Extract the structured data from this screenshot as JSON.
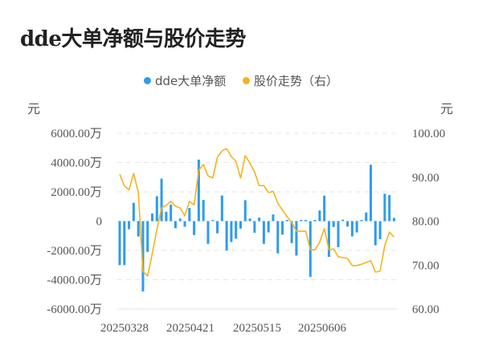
{
  "title": "dde大单净额与股价走势",
  "legend": [
    {
      "label": "dde大单净额",
      "color": "#2e9bf0",
      "icon": "circle"
    },
    {
      "label": "股价走势（右）",
      "color": "#f5b31c",
      "icon": "circle"
    }
  ],
  "axes": {
    "left_unit": "元",
    "right_unit": "元",
    "left_ticks": [
      "6000.00万",
      "4000.00万",
      "2000.00万",
      "0",
      "-2000.00万",
      "-4000.00万",
      "-6000.00万"
    ],
    "right_ticks": [
      "100.00",
      "90.00",
      "80.00",
      "70.00",
      "60.00"
    ],
    "x_ticks": [
      "20250328",
      "20250421",
      "20250515",
      "20250606"
    ]
  },
  "chart_data": {
    "type": "bar+line",
    "title": "dde大单净额与股价走势",
    "xlabel": "",
    "ylabel_left": "元",
    "ylabel_right": "元",
    "ylim_left": [
      -6000,
      6000
    ],
    "ylim_left_unit": "万元",
    "ylim_right": [
      60,
      100
    ],
    "grid": true,
    "legend_position": "top",
    "x_tick_labels": [
      "20250328",
      "20250421",
      "20250515",
      "20250606"
    ],
    "series": [
      {
        "name": "dde大单净额",
        "type": "bar",
        "axis": "left",
        "color": "#2e9bf0",
        "values": [
          -3000,
          -3000,
          -550,
          1250,
          -1050,
          -4800,
          -2100,
          520,
          1700,
          2900,
          640,
          1130,
          -480,
          180,
          -380,
          900,
          -950,
          4200,
          1450,
          -1550,
          30,
          -830,
          1750,
          -2000,
          -1430,
          -1200,
          -510,
          1430,
          180,
          -790,
          240,
          -1550,
          -770,
          460,
          -2200,
          -920,
          80,
          -1500,
          -2350,
          50,
          40,
          -3800,
          0,
          730,
          1740,
          -2440,
          -400,
          -1780,
          100,
          -370,
          -1040,
          -770,
          0,
          590,
          3850,
          -1650,
          -1230,
          1870,
          1780,
          220
        ]
      },
      {
        "name": "股价走势（右）",
        "type": "line",
        "axis": "right",
        "color": "#f5b31c",
        "values": [
          90.7,
          88.0,
          87.1,
          90.9,
          86.5,
          68.6,
          67.5,
          72.6,
          78.1,
          83.0,
          83.6,
          84.5,
          83.4,
          83.0,
          81.2,
          84.5,
          83.7,
          91.6,
          92.9,
          90.3,
          89.8,
          94.5,
          96.0,
          96.5,
          94.7,
          93.6,
          89.8,
          94.9,
          93.2,
          91.2,
          88.1,
          88.1,
          86.5,
          86.8,
          84.1,
          82.5,
          81.0,
          79.7,
          77.7,
          77.7,
          77.7,
          73.5,
          73.5,
          75.2,
          78.3,
          73.5,
          73.7,
          71.9,
          71.7,
          71.5,
          69.9,
          69.9,
          70.2,
          70.6,
          71.0,
          68.4,
          68.6,
          74.4,
          77.5,
          76.4
        ]
      }
    ]
  }
}
